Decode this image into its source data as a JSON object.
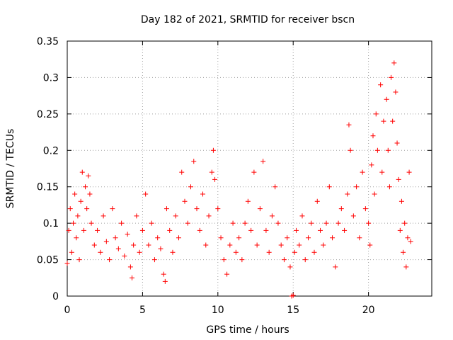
{
  "chart_data": {
    "type": "scatter",
    "title": "Day 182 of 2021, SRMTID for receiver bscn",
    "xlabel": "GPS time / hours",
    "ylabel": "SRMTID / TECUs",
    "xlim": [
      0,
      24.2
    ],
    "ylim": [
      0,
      0.35
    ],
    "x_ticks": [
      0,
      5,
      10,
      15,
      20
    ],
    "x_tick_labels": [
      "0",
      "5",
      "10",
      "15",
      "20"
    ],
    "y_ticks": [
      0,
      0.05,
      0.1,
      0.15,
      0.2,
      0.25,
      0.3,
      0.35
    ],
    "y_tick_labels": [
      "0",
      "0.05",
      "0.1",
      "0.15",
      "0.2",
      "0.25",
      "0.3",
      "0.35"
    ],
    "grid": true,
    "legend": "none",
    "marker": "+",
    "series": [
      {
        "name": "SRMTID",
        "color": "#ff0000",
        "points": [
          [
            0.0,
            0.045
          ],
          [
            0.1,
            0.09
          ],
          [
            0.2,
            0.12
          ],
          [
            0.3,
            0.06
          ],
          [
            0.4,
            0.1
          ],
          [
            0.5,
            0.14
          ],
          [
            0.6,
            0.08
          ],
          [
            0.7,
            0.11
          ],
          [
            0.8,
            0.05
          ],
          [
            0.9,
            0.13
          ],
          [
            1.0,
            0.17
          ],
          [
            1.1,
            0.09
          ],
          [
            1.2,
            0.15
          ],
          [
            1.3,
            0.12
          ],
          [
            1.4,
            0.165
          ],
          [
            1.5,
            0.14
          ],
          [
            1.6,
            0.1
          ],
          [
            1.8,
            0.07
          ],
          [
            2.0,
            0.09
          ],
          [
            2.2,
            0.06
          ],
          [
            2.4,
            0.11
          ],
          [
            2.6,
            0.075
          ],
          [
            2.8,
            0.05
          ],
          [
            3.0,
            0.12
          ],
          [
            3.2,
            0.08
          ],
          [
            3.4,
            0.065
          ],
          [
            3.6,
            0.1
          ],
          [
            3.8,
            0.055
          ],
          [
            4.0,
            0.085
          ],
          [
            4.2,
            0.04
          ],
          [
            4.3,
            0.025
          ],
          [
            4.4,
            0.07
          ],
          [
            4.6,
            0.11
          ],
          [
            4.8,
            0.06
          ],
          [
            5.0,
            0.09
          ],
          [
            5.2,
            0.14
          ],
          [
            5.4,
            0.07
          ],
          [
            5.6,
            0.1
          ],
          [
            5.8,
            0.05
          ],
          [
            6.0,
            0.08
          ],
          [
            6.2,
            0.065
          ],
          [
            6.4,
            0.03
          ],
          [
            6.5,
            0.02
          ],
          [
            6.6,
            0.12
          ],
          [
            6.8,
            0.09
          ],
          [
            7.0,
            0.06
          ],
          [
            7.2,
            0.11
          ],
          [
            7.4,
            0.08
          ],
          [
            7.6,
            0.17
          ],
          [
            7.8,
            0.13
          ],
          [
            8.0,
            0.1
          ],
          [
            8.2,
            0.15
          ],
          [
            8.4,
            0.185
          ],
          [
            8.6,
            0.12
          ],
          [
            8.8,
            0.09
          ],
          [
            9.0,
            0.14
          ],
          [
            9.2,
            0.07
          ],
          [
            9.4,
            0.11
          ],
          [
            9.6,
            0.17
          ],
          [
            9.7,
            0.2
          ],
          [
            9.8,
            0.16
          ],
          [
            10.0,
            0.12
          ],
          [
            10.2,
            0.08
          ],
          [
            10.4,
            0.05
          ],
          [
            10.6,
            0.03
          ],
          [
            10.8,
            0.07
          ],
          [
            11.0,
            0.1
          ],
          [
            11.2,
            0.06
          ],
          [
            11.4,
            0.08
          ],
          [
            11.6,
            0.05
          ],
          [
            11.8,
            0.1
          ],
          [
            12.0,
            0.13
          ],
          [
            12.2,
            0.09
          ],
          [
            12.4,
            0.17
          ],
          [
            12.6,
            0.07
          ],
          [
            12.8,
            0.12
          ],
          [
            13.0,
            0.185
          ],
          [
            13.2,
            0.09
          ],
          [
            13.4,
            0.06
          ],
          [
            13.6,
            0.11
          ],
          [
            13.8,
            0.15
          ],
          [
            14.0,
            0.1
          ],
          [
            14.2,
            0.07
          ],
          [
            14.4,
            0.05
          ],
          [
            14.6,
            0.08
          ],
          [
            14.8,
            0.04
          ],
          [
            14.9,
            0.0
          ],
          [
            15.0,
            0.001
          ],
          [
            15.1,
            0.06
          ],
          [
            15.2,
            0.09
          ],
          [
            15.4,
            0.07
          ],
          [
            15.6,
            0.11
          ],
          [
            15.8,
            0.05
          ],
          [
            16.0,
            0.08
          ],
          [
            16.2,
            0.1
          ],
          [
            16.4,
            0.06
          ],
          [
            16.6,
            0.13
          ],
          [
            16.8,
            0.09
          ],
          [
            17.0,
            0.07
          ],
          [
            17.2,
            0.1
          ],
          [
            17.4,
            0.15
          ],
          [
            17.6,
            0.08
          ],
          [
            17.8,
            0.04
          ],
          [
            18.0,
            0.1
          ],
          [
            18.2,
            0.12
          ],
          [
            18.4,
            0.09
          ],
          [
            18.6,
            0.14
          ],
          [
            18.7,
            0.235
          ],
          [
            18.8,
            0.2
          ],
          [
            19.0,
            0.11
          ],
          [
            19.2,
            0.15
          ],
          [
            19.4,
            0.08
          ],
          [
            19.6,
            0.17
          ],
          [
            19.8,
            0.12
          ],
          [
            20.0,
            0.1
          ],
          [
            20.1,
            0.07
          ],
          [
            20.2,
            0.18
          ],
          [
            20.3,
            0.22
          ],
          [
            20.4,
            0.14
          ],
          [
            20.5,
            0.25
          ],
          [
            20.6,
            0.2
          ],
          [
            20.8,
            0.29
          ],
          [
            20.9,
            0.17
          ],
          [
            21.0,
            0.24
          ],
          [
            21.2,
            0.27
          ],
          [
            21.3,
            0.2
          ],
          [
            21.4,
            0.15
          ],
          [
            21.5,
            0.3
          ],
          [
            21.6,
            0.24
          ],
          [
            21.7,
            0.32
          ],
          [
            21.8,
            0.28
          ],
          [
            21.9,
            0.21
          ],
          [
            22.0,
            0.16
          ],
          [
            22.1,
            0.09
          ],
          [
            22.2,
            0.13
          ],
          [
            22.3,
            0.06
          ],
          [
            22.4,
            0.1
          ],
          [
            22.5,
            0.04
          ],
          [
            22.6,
            0.08
          ],
          [
            22.7,
            0.17
          ],
          [
            22.8,
            0.075
          ]
        ]
      }
    ]
  }
}
